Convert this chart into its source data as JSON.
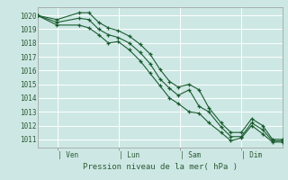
{
  "background_color": "#cde8e4",
  "grid_color": "#ffffff",
  "line_color": "#1a5c30",
  "marker_color": "#1a5c30",
  "xlabel_text": "Pression niveau de la mer( hPa )",
  "ylim": [
    1010.4,
    1020.6
  ],
  "yticks": [
    1011,
    1012,
    1013,
    1014,
    1015,
    1016,
    1017,
    1018,
    1019,
    1020
  ],
  "xtick_labels": [
    "| Ven",
    "| Lun",
    "| Sam",
    "| Dim"
  ],
  "xtick_positions": [
    0.083,
    0.333,
    0.583,
    0.833
  ],
  "vline_positions": [
    0.083,
    0.333,
    0.583,
    0.833
  ],
  "lines": [
    [
      0.0,
      1020.0,
      0.08,
      1019.7,
      0.17,
      1020.2,
      0.21,
      1020.2,
      0.25,
      1019.5,
      0.29,
      1019.1,
      0.33,
      1018.9,
      0.375,
      1018.5,
      0.42,
      1017.9,
      0.46,
      1017.2,
      0.5,
      1016.1,
      0.54,
      1015.2,
      0.575,
      1014.8,
      0.62,
      1015.0,
      0.66,
      1014.6,
      0.7,
      1013.3,
      0.75,
      1012.2,
      0.79,
      1011.5,
      0.833,
      1011.5,
      0.875,
      1012.5,
      0.92,
      1012.0,
      0.96,
      1011.0,
      1.0,
      1011.0
    ],
    [
      0.0,
      1020.0,
      0.08,
      1019.5,
      0.17,
      1019.8,
      0.21,
      1019.7,
      0.25,
      1019.0,
      0.29,
      1018.6,
      0.33,
      1018.4,
      0.375,
      1018.0,
      0.42,
      1017.3,
      0.46,
      1016.5,
      0.5,
      1015.4,
      0.54,
      1014.7,
      0.575,
      1014.2,
      0.62,
      1014.6,
      0.66,
      1013.4,
      0.7,
      1013.0,
      0.75,
      1011.9,
      0.79,
      1011.2,
      0.833,
      1011.2,
      0.875,
      1012.2,
      0.92,
      1011.7,
      0.96,
      1010.9,
      1.0,
      1010.9
    ],
    [
      0.0,
      1020.0,
      0.08,
      1019.3,
      0.17,
      1019.3,
      0.21,
      1019.1,
      0.25,
      1018.6,
      0.29,
      1018.0,
      0.33,
      1018.1,
      0.375,
      1017.5,
      0.42,
      1016.7,
      0.46,
      1015.8,
      0.5,
      1014.9,
      0.54,
      1014.0,
      0.575,
      1013.6,
      0.62,
      1013.0,
      0.66,
      1012.9,
      0.7,
      1012.2,
      0.75,
      1011.5,
      0.79,
      1010.9,
      0.833,
      1011.1,
      0.875,
      1012.0,
      0.92,
      1011.4,
      0.96,
      1010.8,
      1.0,
      1010.8
    ]
  ]
}
